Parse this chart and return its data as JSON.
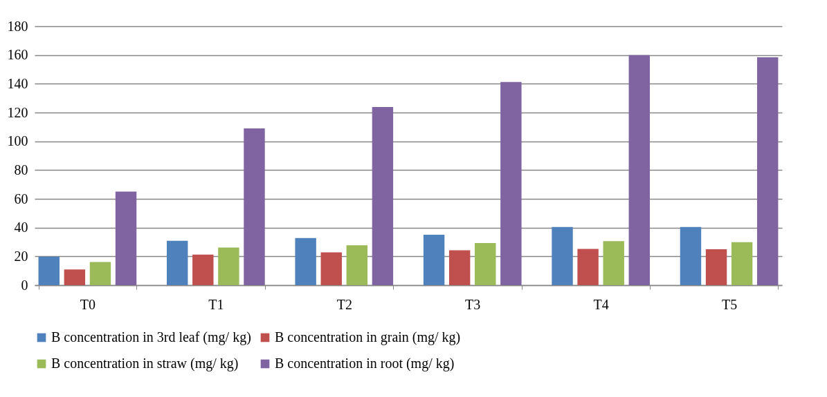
{
  "chart_data": {
    "type": "bar",
    "categories": [
      "T0",
      "T1",
      "T2",
      "T3",
      "T4",
      "T5"
    ],
    "series": [
      {
        "name": "B concentration in 3rd leaf (mg/ kg)",
        "color": "#4f81bd",
        "values": [
          19.8,
          30.8,
          32.8,
          35.1,
          40.5,
          40.4
        ]
      },
      {
        "name": "B concentration in grain (mg/ kg)",
        "color": "#c0504d",
        "values": [
          10.9,
          21.2,
          22.8,
          24.3,
          25.2,
          25.0
        ]
      },
      {
        "name": "B concentration in straw (mg/ kg)",
        "color": "#9bbb59",
        "values": [
          16.1,
          26.2,
          27.7,
          29.3,
          30.6,
          29.9
        ]
      },
      {
        "name": "B concentration in root (mg/ kg)",
        "color": "#8064a2",
        "values": [
          65.0,
          109.0,
          123.9,
          141.2,
          160.0,
          158.4
        ]
      }
    ],
    "ylim": [
      0,
      180
    ],
    "yticks": [
      0,
      20,
      40,
      60,
      80,
      100,
      120,
      140,
      160,
      180
    ],
    "grid": "y",
    "legend": "bottom"
  }
}
